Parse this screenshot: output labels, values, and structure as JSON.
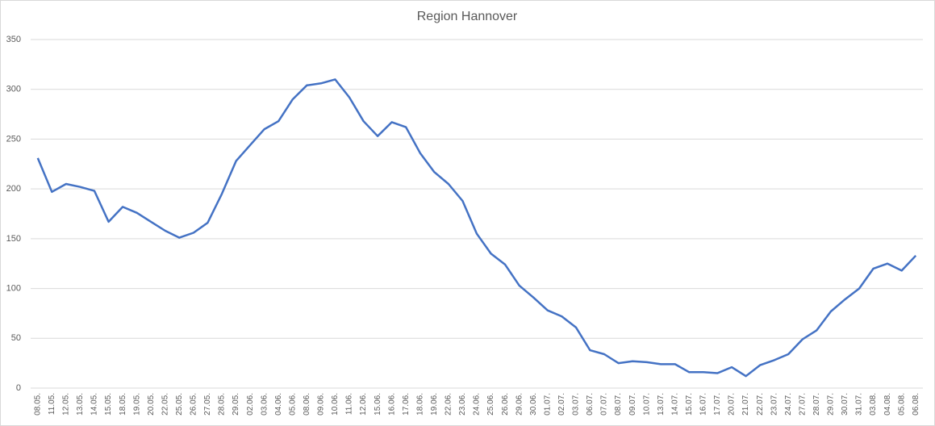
{
  "chart_data": {
    "type": "line",
    "title": "Region Hannover",
    "categories": [
      "08.05.",
      "11.05.",
      "12.05.",
      "13.05.",
      "14.05.",
      "15.05.",
      "18.05.",
      "19.05.",
      "20.05.",
      "22.05.",
      "25.05.",
      "26.05.",
      "27.05.",
      "28.05.",
      "29.05.",
      "02.06.",
      "03.06.",
      "04.06.",
      "05.06.",
      "08.06.",
      "09.06.",
      "10.06.",
      "11.06.",
      "12.06.",
      "15.06.",
      "16.06.",
      "17.06.",
      "18.06.",
      "19.06.",
      "22.06.",
      "23.06.",
      "24.06.",
      "25.06.",
      "26.06.",
      "29.06.",
      "30.06.",
      "01.07.",
      "02.07.",
      "03.07.",
      "06.07.",
      "07.07.",
      "08.07.",
      "09.07.",
      "10.07.",
      "13.07.",
      "14.07.",
      "15.07.",
      "16.07.",
      "17.07.",
      "20.07.",
      "21.07.",
      "22.07.",
      "23.07.",
      "24.07.",
      "27.07.",
      "28.07.",
      "29.07.",
      "30.07.",
      "31.07.",
      "03.08.",
      "04.08.",
      "05.08.",
      "06.08."
    ],
    "values": [
      231,
      197,
      205,
      202,
      198,
      167,
      182,
      176,
      167,
      158,
      151,
      156,
      166,
      195,
      228,
      244,
      260,
      268,
      290,
      304,
      306,
      310,
      292,
      268,
      253,
      267,
      262,
      236,
      217,
      205,
      188,
      155,
      135,
      124,
      103,
      91,
      78,
      72,
      61,
      38,
      34,
      25,
      27,
      26,
      24,
      24,
      16,
      16,
      15,
      21,
      12,
      23,
      28,
      34,
      49,
      58,
      77,
      89,
      100,
      120,
      125,
      118,
      133
    ],
    "color": "#4472c4",
    "ylim": [
      0,
      350
    ],
    "yticks": [
      0,
      50,
      100,
      150,
      200,
      250,
      300,
      350
    ],
    "grid": true
  }
}
